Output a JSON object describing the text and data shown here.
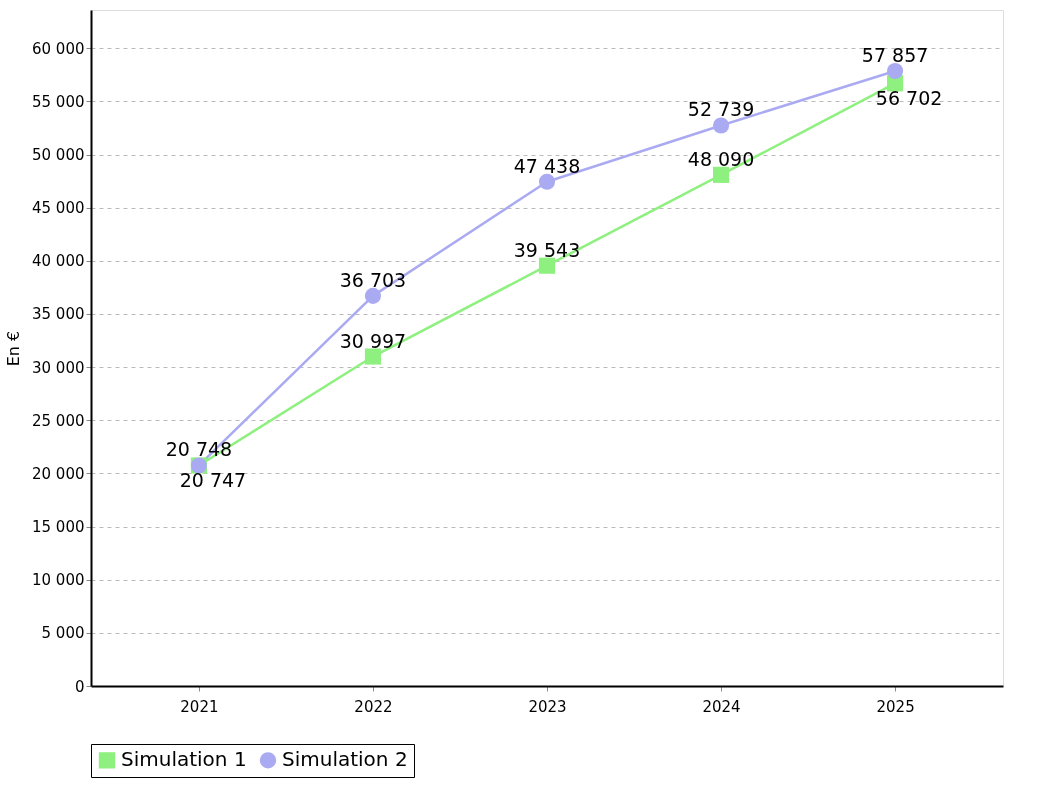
{
  "chart_data": {
    "type": "line",
    "ylabel": "En €",
    "categories": [
      "2021",
      "2022",
      "2023",
      "2024",
      "2025"
    ],
    "series": [
      {
        "name": "Simulation 1",
        "color": "#8ef07e",
        "marker": "square",
        "values": [
          20747,
          30997,
          39543,
          48090,
          56702
        ],
        "value_labels": [
          "20 747",
          "30 997",
          "39 543",
          "48 090",
          "56 702"
        ]
      },
      {
        "name": "Simulation 2",
        "color": "#aaaaf2",
        "marker": "circle",
        "values": [
          20748,
          36703,
          47438,
          52739,
          57857
        ],
        "value_labels": [
          "20 748",
          "36 703",
          "47 438",
          "52 739",
          "57 857"
        ]
      }
    ],
    "ylim": [
      0,
      63600
    ],
    "yticks": [
      {
        "value": 0,
        "label": "0"
      },
      {
        "value": 5000,
        "label": "5 000"
      },
      {
        "value": 10000,
        "label": "10 000"
      },
      {
        "value": 15000,
        "label": "15 000"
      },
      {
        "value": 20000,
        "label": "20 000"
      },
      {
        "value": 25000,
        "label": "25 000"
      },
      {
        "value": 30000,
        "label": "30 000"
      },
      {
        "value": 35000,
        "label": "35 000"
      },
      {
        "value": 40000,
        "label": "40 000"
      },
      {
        "value": 45000,
        "label": "45 000"
      },
      {
        "value": 50000,
        "label": "50 000"
      },
      {
        "value": 55000,
        "label": "55 000"
      },
      {
        "value": 60000,
        "label": "60 000"
      }
    ],
    "grid": "y",
    "legend": "bottom",
    "line_style": "solid"
  }
}
